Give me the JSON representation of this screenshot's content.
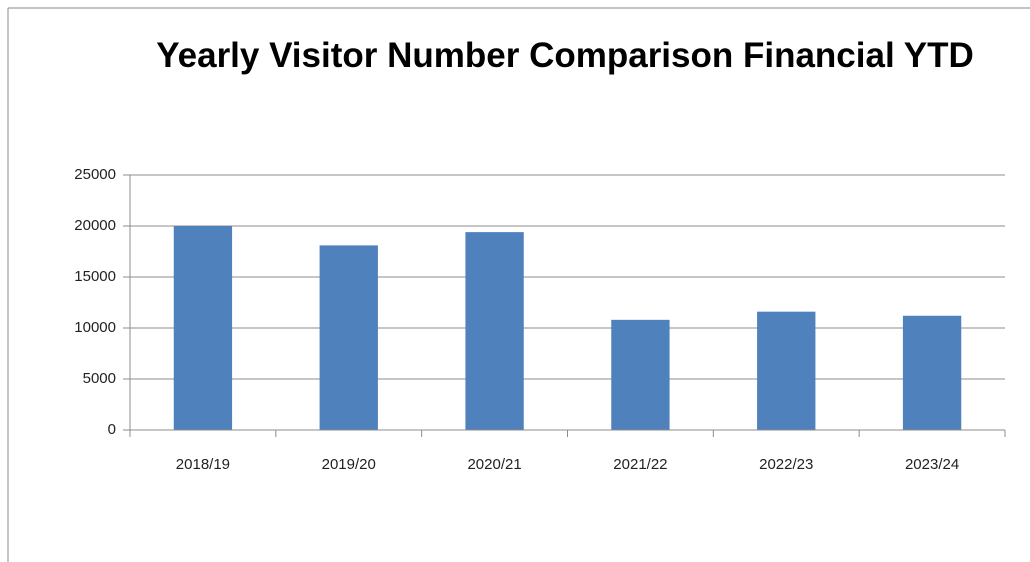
{
  "chart_data": {
    "type": "bar",
    "title": "Yearly Visitor Number Comparison Financial YTD",
    "categories": [
      "2018/19",
      "2019/20",
      "2020/21",
      "2021/22",
      "2022/23",
      "2023/24"
    ],
    "values": [
      20000,
      18100,
      19400,
      10800,
      11600,
      11200
    ],
    "color": "#4f81bd",
    "ylim": [
      0,
      25000
    ],
    "yticks": [
      0,
      5000,
      10000,
      15000,
      20000,
      25000
    ],
    "grid": true
  }
}
